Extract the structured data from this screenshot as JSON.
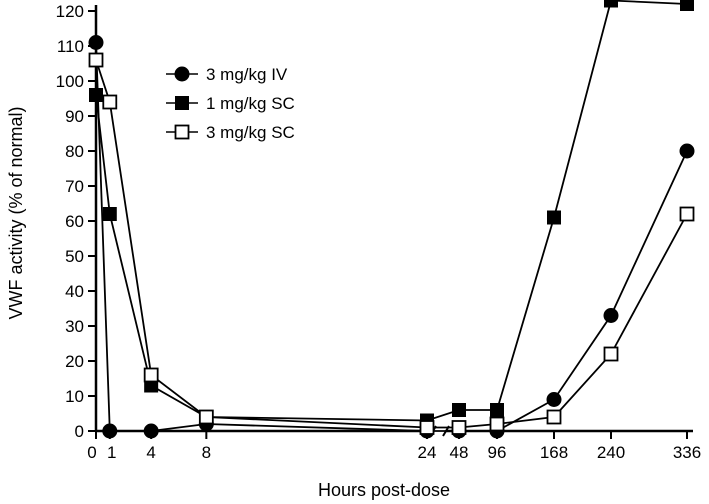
{
  "chart_data": {
    "type": "line",
    "xlabel": "Hours post-dose",
    "ylabel": "VWF activity (% of normal)",
    "ylim": [
      0,
      120
    ],
    "yticks": [
      0,
      10,
      20,
      30,
      40,
      50,
      60,
      70,
      80,
      90,
      100,
      110,
      120
    ],
    "xaxis_break": "between 24 and 48 (linear 0–24 segment, then 48–336)",
    "xticks": [
      {
        "value": 0,
        "label": "0"
      },
      {
        "value": 1,
        "label": "1"
      },
      {
        "value": 4,
        "label": "4"
      },
      {
        "value": 8,
        "label": "8"
      },
      {
        "value": 24,
        "label": "24"
      },
      {
        "value": 48,
        "label": "48"
      },
      {
        "value": 96,
        "label": "96"
      },
      {
        "value": 168,
        "label": "168"
      },
      {
        "value": 240,
        "label": "240"
      },
      {
        "value": 336,
        "label": "336"
      }
    ],
    "legend_position": "top-left",
    "series": [
      {
        "name": "3 mg/kg IV",
        "marker": "filled-circle",
        "points": [
          [
            0,
            111
          ],
          [
            1,
            0
          ],
          [
            4,
            0
          ],
          [
            8,
            2
          ],
          [
            24,
            0
          ],
          [
            48,
            0
          ],
          [
            96,
            0
          ],
          [
            168,
            9
          ],
          [
            240,
            33
          ],
          [
            336,
            80
          ]
        ]
      },
      {
        "name": "1 mg/kg SC",
        "marker": "filled-square",
        "points": [
          [
            0,
            96
          ],
          [
            1,
            62
          ],
          [
            4,
            13
          ],
          [
            8,
            4
          ],
          [
            24,
            3
          ],
          [
            48,
            6
          ],
          [
            96,
            6
          ],
          [
            168,
            61
          ],
          [
            240,
            123
          ],
          [
            336,
            122
          ]
        ]
      },
      {
        "name": "3 mg/kg SC",
        "marker": "open-square",
        "points": [
          [
            0,
            106
          ],
          [
            1,
            94
          ],
          [
            4,
            16
          ],
          [
            8,
            4
          ],
          [
            24,
            1
          ],
          [
            48,
            1
          ],
          [
            96,
            2
          ],
          [
            168,
            4
          ],
          [
            240,
            22
          ],
          [
            336,
            62
          ]
        ]
      }
    ]
  }
}
